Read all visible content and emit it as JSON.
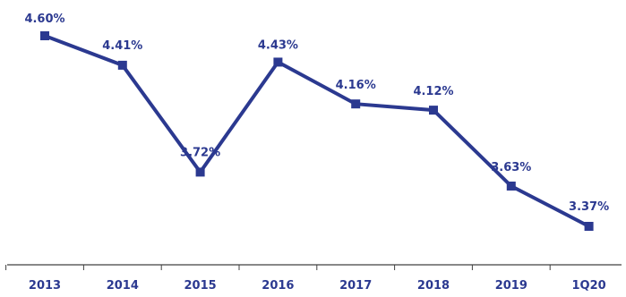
{
  "chart_data": {
    "type": "line",
    "categories": [
      "2013",
      "2014",
      "2015",
      "2016",
      "2017",
      "2018",
      "2019",
      "1Q20"
    ],
    "series": [
      {
        "values": [
          4.6,
          4.41,
          3.72,
          4.43,
          4.16,
          4.12,
          3.63,
          3.37
        ],
        "data_labels": [
          "4.60%",
          "4.41%",
          "3.72%",
          "4.43%",
          "4.16%",
          "4.12%",
          "3.63%",
          "3.37%"
        ]
      }
    ],
    "title": "",
    "xlabel": "",
    "ylabel": "",
    "y_axis_visible": false,
    "ylim": [
      3.0,
      4.8
    ],
    "grid": false,
    "legend": "none"
  },
  "colors": {
    "series": "#2B3990",
    "axis": "#404040",
    "label": "#2B3990",
    "tick_label": "#2B3990"
  }
}
